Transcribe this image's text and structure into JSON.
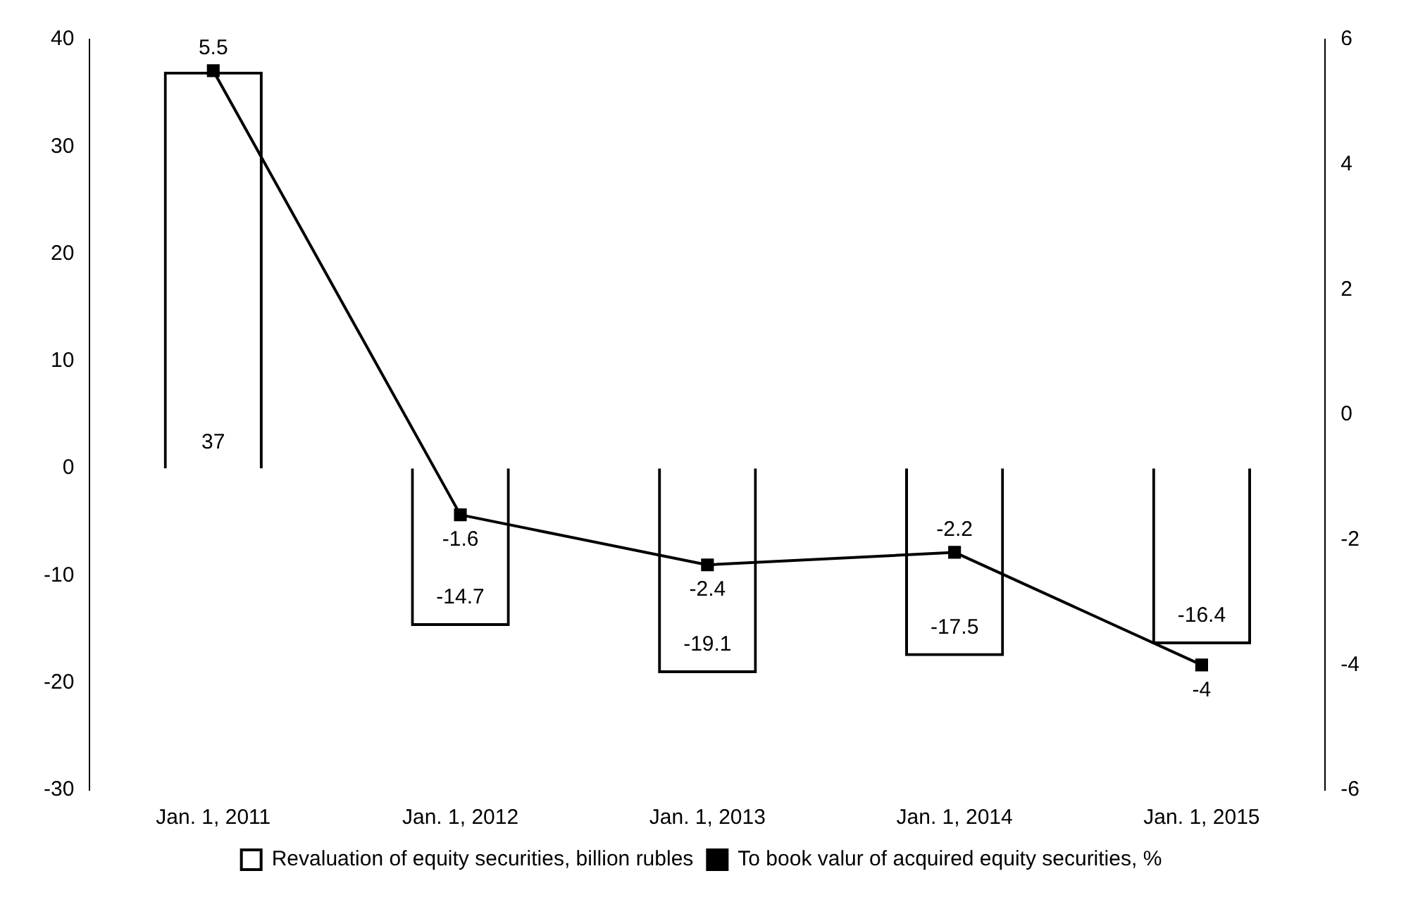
{
  "chart_data": {
    "type": "bar",
    "categories": [
      "Jan. 1, 2011",
      "Jan. 1, 2012",
      "Jan. 1, 2013",
      "Jan. 1, 2014",
      "Jan. 1, 2015"
    ],
    "series": [
      {
        "name": "Revaluation of equity securities, billion rubles",
        "color": "#000000",
        "values": [
          37,
          -14.7,
          -19.1,
          -17.5,
          -16.4
        ]
      },
      {
        "name": "To book valur of acquired equity securities, %",
        "type": "line",
        "axis": "y2",
        "color": "#000000",
        "values": [
          5.5,
          -1.6,
          -2.4,
          -2.2,
          -4
        ]
      }
    ],
    "ylim": [
      -30,
      40
    ],
    "yticks": [
      -30,
      -20,
      -10,
      0,
      10,
      20,
      30,
      40
    ],
    "y2lim": [
      -6,
      6
    ],
    "y2ticks": [
      -6,
      -4,
      -2,
      0,
      2,
      4,
      6
    ],
    "data_labels": true,
    "grid": false,
    "legend": "bottom",
    "marker": "square",
    "line_style": "solid"
  }
}
